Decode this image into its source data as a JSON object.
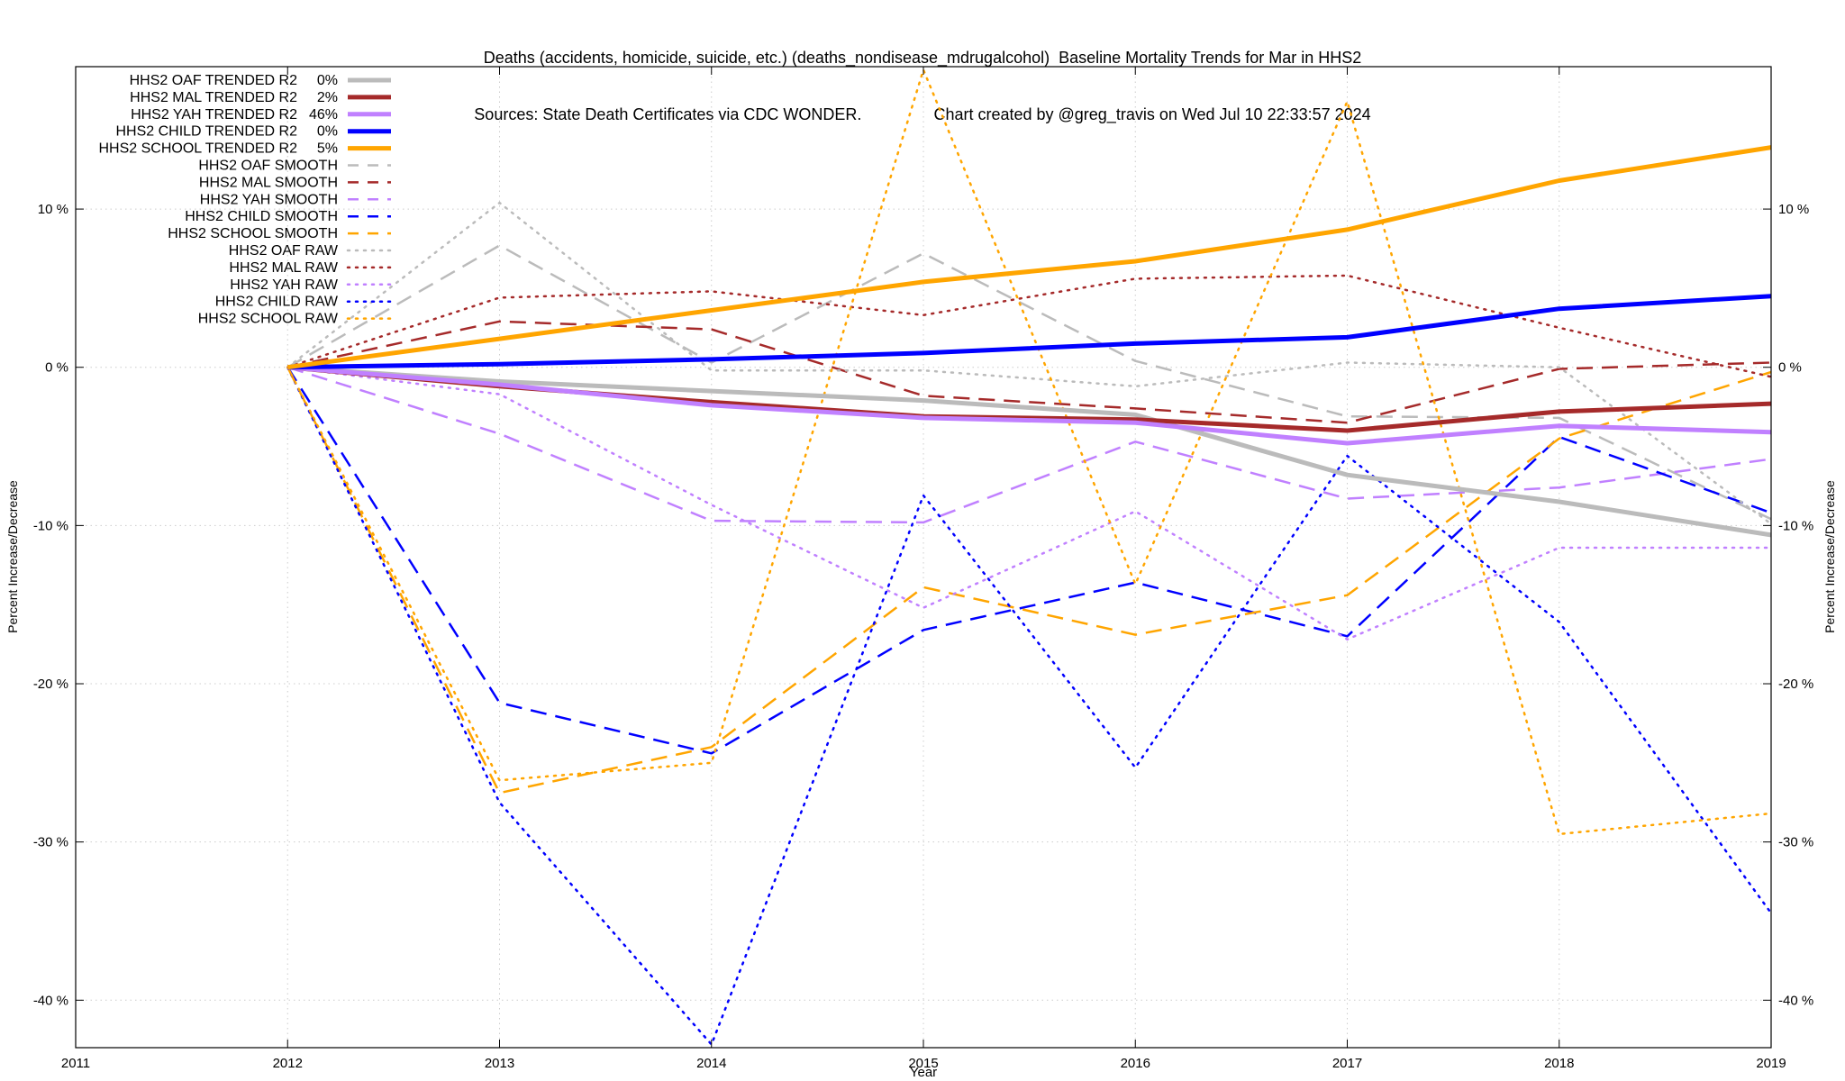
{
  "title_line1": "Deaths (accidents, homicide, suicide, etc.) (deaths_nondisease_mdrugalcohol)  Baseline Mortality Trends for Mar in HHS2",
  "title_line2": "Sources: State Death Certificates via CDC WONDER.                Chart created by @greg_travis on Wed Jul 10 22:33:57 2024",
  "chart_data": {
    "type": "line",
    "title": "Deaths (accidents, homicide, suicide, etc.) (deaths_nondisease_mdrugalcohol)  Baseline Mortality Trends for Mar in HHS2",
    "xlabel": "Year",
    "ylabel": "Percent Increase/Decrease",
    "y2label": "Percent Increase/Decrease",
    "xlim": [
      2011,
      2019
    ],
    "ylim": [
      -43,
      19
    ],
    "x_ticks": [
      2011,
      2012,
      2013,
      2014,
      2015,
      2016,
      2017,
      2018,
      2019
    ],
    "x_tick_labels": [
      "2011",
      "2012",
      "2013",
      "2014",
      "2015",
      "2016",
      "2017",
      "2018",
      "2019"
    ],
    "y_ticks": [
      -40,
      -30,
      -20,
      -10,
      0,
      10
    ],
    "y_tick_labels": [
      "-40 %",
      "-30 %",
      "-20 %",
      "-10 %",
      "0 %",
      "10 %"
    ],
    "grid": true,
    "legend_position": "top-left",
    "x": [
      2012,
      2013,
      2014,
      2015,
      2016,
      2017,
      2018,
      2019
    ],
    "series": [
      {
        "name": "HHS2 OAF TRENDED R2",
        "r2": "0%",
        "color": "#bbbbbb",
        "style": "solid",
        "width": 5,
        "values": [
          0,
          -0.9,
          -1.5,
          -2.1,
          -3.0,
          -6.8,
          -8.5,
          -10.6
        ]
      },
      {
        "name": "HHS2 MAL TRENDED R2",
        "r2": "2%",
        "color": "#a52a2a",
        "style": "solid",
        "width": 5,
        "values": [
          0,
          -1.2,
          -2.2,
          -3.1,
          -3.3,
          -4.0,
          -2.8,
          -2.3
        ]
      },
      {
        "name": "HHS2 YAH TRENDED R2",
        "r2": "46%",
        "color": "#c080ff",
        "style": "solid",
        "width": 5,
        "values": [
          0,
          -1.1,
          -2.4,
          -3.2,
          -3.5,
          -4.8,
          -3.7,
          -4.1
        ]
      },
      {
        "name": "HHS2 CHILD TRENDED R2",
        "r2": "0%",
        "color": "#0000ff",
        "style": "solid",
        "width": 5,
        "values": [
          0,
          0.2,
          0.5,
          0.9,
          1.5,
          1.9,
          3.7,
          4.5
        ]
      },
      {
        "name": "HHS2 SCHOOL TRENDED R2",
        "r2": "5%",
        "color": "#ffa500",
        "style": "solid",
        "width": 5,
        "values": [
          0,
          1.8,
          3.6,
          5.4,
          6.7,
          8.7,
          11.8,
          13.9
        ]
      },
      {
        "name": "HHS2 OAF SMOOTH",
        "r2": "",
        "color": "#bbbbbb",
        "style": "dashed",
        "width": 2.5,
        "values": [
          0,
          7.7,
          0.3,
          7.2,
          0.4,
          -3.1,
          -3.2,
          -9.6
        ]
      },
      {
        "name": "HHS2 MAL SMOOTH",
        "r2": "",
        "color": "#a52a2a",
        "style": "dashed",
        "width": 2.5,
        "values": [
          0,
          2.9,
          2.4,
          -1.8,
          -2.6,
          -3.5,
          -0.1,
          0.3
        ]
      },
      {
        "name": "HHS2 YAH SMOOTH",
        "r2": "",
        "color": "#c080ff",
        "style": "dashed",
        "width": 2.5,
        "values": [
          0,
          -4.2,
          -9.7,
          -9.8,
          -4.7,
          -8.3,
          -7.6,
          -5.8
        ]
      },
      {
        "name": "HHS2 CHILD SMOOTH",
        "r2": "",
        "color": "#0000ff",
        "style": "dashed",
        "width": 2.5,
        "values": [
          0,
          -21.2,
          -24.4,
          -16.6,
          -13.6,
          -17.0,
          -4.4,
          -9.2
        ]
      },
      {
        "name": "HHS2 SCHOOL SMOOTH",
        "r2": "",
        "color": "#ffa500",
        "style": "dashed",
        "width": 2.5,
        "values": [
          0,
          -26.9,
          -24.0,
          -13.9,
          -16.9,
          -14.4,
          -4.5,
          -0.3
        ]
      },
      {
        "name": "HHS2 OAF RAW",
        "r2": "",
        "color": "#bbbbbb",
        "style": "dotted",
        "width": 2.5,
        "values": [
          0,
          10.4,
          -0.2,
          -0.2,
          -1.2,
          0.3,
          0.0,
          -9.9
        ]
      },
      {
        "name": "HHS2 MAL RAW",
        "r2": "",
        "color": "#a52a2a",
        "style": "dotted",
        "width": 2.5,
        "values": [
          0,
          4.4,
          4.8,
          3.3,
          5.6,
          5.8,
          2.5,
          -0.6
        ]
      },
      {
        "name": "HHS2 YAH RAW",
        "r2": "",
        "color": "#c080ff",
        "style": "dotted",
        "width": 2.5,
        "values": [
          0,
          -1.7,
          -8.7,
          -15.2,
          -9.1,
          -17.2,
          -11.4,
          -11.4
        ]
      },
      {
        "name": "HHS2 CHILD RAW",
        "r2": "",
        "color": "#0000ff",
        "style": "dotted",
        "width": 2.5,
        "values": [
          0,
          -27.5,
          -42.8,
          -8.1,
          -25.3,
          -5.6,
          -16.1,
          -34.5
        ]
      },
      {
        "name": "HHS2 SCHOOL RAW",
        "r2": "",
        "color": "#ffa500",
        "style": "dotted",
        "width": 2.5,
        "values": [
          0,
          -26.1,
          -25.0,
          18.8,
          -13.7,
          16.8,
          -29.5,
          -28.2
        ]
      }
    ]
  }
}
